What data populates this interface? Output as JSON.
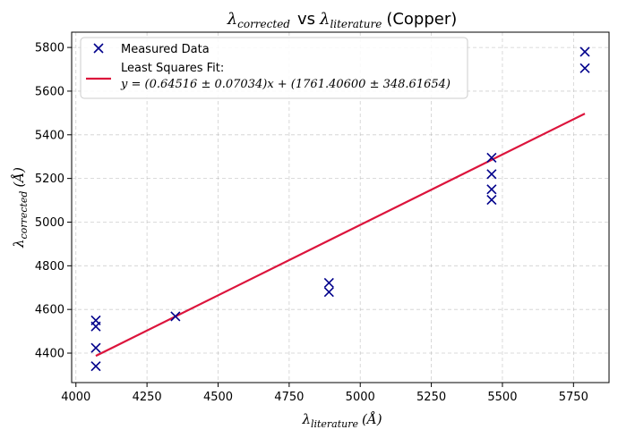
{
  "chart_data": {
    "type": "scatter",
    "title": {
      "lhs_symbol": "λ",
      "lhs_sub": "corrected",
      "vs": "vs",
      "rhs_symbol": "λ",
      "rhs_sub": "literature",
      "suffix": "(Copper)"
    },
    "xlabel": {
      "symbol": "λ",
      "sub": "literature",
      "unit": "(Å)"
    },
    "ylabel": {
      "symbol": "λ",
      "sub": "corrected",
      "unit": "(Å)"
    },
    "xlim": [
      3985,
      5875
    ],
    "ylim": [
      4265,
      5870
    ],
    "xticks": [
      4000,
      4250,
      4500,
      4750,
      5000,
      5250,
      5500,
      5750
    ],
    "yticks": [
      4400,
      4600,
      4800,
      5000,
      5200,
      5400,
      5600,
      5800
    ],
    "grid": true,
    "legend_position": "top-left",
    "series": [
      {
        "name": "Measured Data",
        "kind": "scatter",
        "marker": "x",
        "color": "#00008b",
        "points": [
          {
            "x": 4070,
            "y": 4550
          },
          {
            "x": 4070,
            "y": 4522
          },
          {
            "x": 4070,
            "y": 4424
          },
          {
            "x": 4070,
            "y": 4340
          },
          {
            "x": 4350,
            "y": 4568
          },
          {
            "x": 4890,
            "y": 4722
          },
          {
            "x": 4890,
            "y": 4680
          },
          {
            "x": 5462,
            "y": 5295
          },
          {
            "x": 5462,
            "y": 5220
          },
          {
            "x": 5462,
            "y": 5150
          },
          {
            "x": 5462,
            "y": 5102
          },
          {
            "x": 5790,
            "y": 5780
          },
          {
            "x": 5790,
            "y": 5705
          }
        ]
      },
      {
        "name": "Least Squares Fit:",
        "equation": "y = (0.64516 ± 0.07034)x + (1761.40600 ± 348.61654)",
        "kind": "line",
        "color": "#dc143c",
        "slope": 0.64516,
        "intercept": 1761.406,
        "x_range": [
          4070,
          5790
        ]
      }
    ]
  }
}
